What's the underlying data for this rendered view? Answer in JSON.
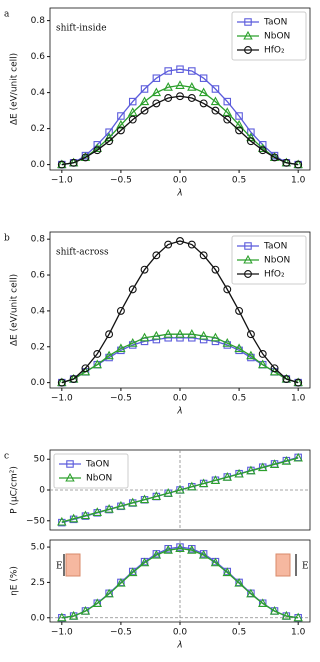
{
  "chart_data": [
    {
      "type": "line",
      "panel": "a",
      "annotation": "shift-inside",
      "ylabel": "ΔE (eV/unit cell)",
      "xlabel": "λ",
      "x": [
        -1,
        -0.9,
        -0.8,
        -0.7,
        -0.6,
        -0.5,
        -0.4,
        -0.3,
        -0.2,
        -0.1,
        0,
        0.1,
        0.2,
        0.3,
        0.4,
        0.5,
        0.6,
        0.7,
        0.8,
        0.9,
        1
      ],
      "xlim": [
        -1.1,
        1.1
      ],
      "xticks": [
        {
          "value": -1,
          "label": "−1.0"
        },
        {
          "value": -0.5,
          "label": "−0.5"
        },
        {
          "value": 0,
          "label": "0.0"
        },
        0.5,
        {
          "value": 1,
          "label": "1.0"
        }
      ],
      "ylim": [
        -0.03,
        0.87
      ],
      "yticks": [
        {
          "value": 0,
          "label": "0.0"
        },
        0.2,
        0.4,
        0.6,
        0.8
      ],
      "legend": "upper right",
      "series": [
        {
          "name": "TaON",
          "color": "#5b5bdc",
          "marker": "square",
          "values": [
            0,
            0.01,
            0.05,
            0.11,
            0.18,
            0.27,
            0.35,
            0.42,
            0.48,
            0.52,
            0.53,
            0.52,
            0.48,
            0.42,
            0.35,
            0.27,
            0.18,
            0.11,
            0.05,
            0.01,
            0
          ]
        },
        {
          "name": "NbON",
          "color": "#2ca02c",
          "marker": "triangle",
          "values": [
            0,
            0.01,
            0.04,
            0.09,
            0.15,
            0.22,
            0.29,
            0.35,
            0.4,
            0.43,
            0.44,
            0.43,
            0.4,
            0.35,
            0.29,
            0.22,
            0.15,
            0.09,
            0.04,
            0.01,
            0
          ]
        },
        {
          "name": "HfO₂",
          "color": "#111111",
          "marker": "circle",
          "values": [
            0,
            0.01,
            0.04,
            0.08,
            0.13,
            0.19,
            0.25,
            0.3,
            0.34,
            0.37,
            0.38,
            0.37,
            0.34,
            0.3,
            0.25,
            0.19,
            0.13,
            0.08,
            0.04,
            0.01,
            0
          ]
        }
      ]
    },
    {
      "type": "line",
      "panel": "b",
      "annotation": "shift-across",
      "ylabel": "ΔE (eV/unit cell)",
      "xlabel": "λ",
      "x": [
        -1,
        -0.9,
        -0.8,
        -0.7,
        -0.6,
        -0.5,
        -0.4,
        -0.3,
        -0.2,
        -0.1,
        0,
        0.1,
        0.2,
        0.3,
        0.4,
        0.5,
        0.6,
        0.7,
        0.8,
        0.9,
        1
      ],
      "xlim": [
        -1.1,
        1.1
      ],
      "xticks": [
        {
          "value": -1,
          "label": "−1.0"
        },
        {
          "value": -0.5,
          "label": "−0.5"
        },
        {
          "value": 0,
          "label": "0.0"
        },
        0.5,
        {
          "value": 1,
          "label": "1.0"
        }
      ],
      "ylim": [
        -0.03,
        0.84
      ],
      "yticks": [
        {
          "value": 0,
          "label": "0.0"
        },
        0.2,
        0.4,
        0.6,
        0.8
      ],
      "legend": "upper right",
      "series": [
        {
          "name": "TaON",
          "color": "#5b5bdc",
          "marker": "square",
          "values": [
            0,
            0.02,
            0.06,
            0.1,
            0.14,
            0.18,
            0.21,
            0.23,
            0.24,
            0.25,
            0.25,
            0.25,
            0.24,
            0.23,
            0.21,
            0.18,
            0.14,
            0.1,
            0.06,
            0.02,
            0
          ]
        },
        {
          "name": "NbON",
          "color": "#2ca02c",
          "marker": "triangle",
          "values": [
            0,
            0.02,
            0.06,
            0.1,
            0.15,
            0.19,
            0.22,
            0.25,
            0.26,
            0.27,
            0.27,
            0.27,
            0.26,
            0.25,
            0.22,
            0.19,
            0.15,
            0.1,
            0.06,
            0.02,
            0
          ]
        },
        {
          "name": "HfO₂",
          "color": "#111111",
          "marker": "circle",
          "values": [
            0,
            0.02,
            0.08,
            0.16,
            0.27,
            0.4,
            0.52,
            0.63,
            0.71,
            0.77,
            0.79,
            0.77,
            0.71,
            0.63,
            0.52,
            0.4,
            0.27,
            0.16,
            0.08,
            0.02,
            0
          ]
        }
      ]
    },
    {
      "type": "line",
      "panel": "c",
      "ylabel": "P (μC/cm²)",
      "zero_lines": true,
      "x": [
        -1,
        -0.9,
        -0.8,
        -0.7,
        -0.6,
        -0.5,
        -0.4,
        -0.3,
        -0.2,
        -0.1,
        0,
        0.1,
        0.2,
        0.3,
        0.4,
        0.5,
        0.6,
        0.7,
        0.8,
        0.9,
        1
      ],
      "xlim": [
        -1.1,
        1.1
      ],
      "ylim": [
        -65,
        65
      ],
      "yticks": [
        {
          "value": -50,
          "label": "−50"
        },
        0,
        50
      ],
      "legend": "upper left",
      "series": [
        {
          "name": "TaON",
          "color": "#5b5bdc",
          "marker": "square",
          "values": [
            -53,
            -47.7,
            -42.4,
            -37.1,
            -31.8,
            -26.5,
            -21.2,
            -15.9,
            -10.6,
            -5.3,
            0,
            5.3,
            10.6,
            15.9,
            21.2,
            26.5,
            31.8,
            37.1,
            42.4,
            47.7,
            53
          ]
        },
        {
          "name": "NbON",
          "color": "#2ca02c",
          "marker": "triangle",
          "values": [
            -52,
            -46.8,
            -41.6,
            -36.4,
            -31.2,
            -26,
            -20.8,
            -15.6,
            -10.4,
            -5.2,
            0,
            5.2,
            10.4,
            15.6,
            20.8,
            26,
            31.2,
            36.4,
            41.6,
            46.8,
            52
          ]
        }
      ]
    },
    {
      "type": "line",
      "ylabel": "ηE (%)",
      "xlabel": "λ",
      "zero_lines": true,
      "annotations": [
        "E",
        "E"
      ],
      "x": [
        -1,
        -0.9,
        -0.8,
        -0.7,
        -0.6,
        -0.5,
        -0.4,
        -0.3,
        -0.2,
        -0.1,
        0,
        0.1,
        0.2,
        0.3,
        0.4,
        0.5,
        0.6,
        0.7,
        0.8,
        0.9,
        1
      ],
      "xlim": [
        -1.1,
        1.1
      ],
      "xticks": [
        {
          "value": -1,
          "label": "−1.0"
        },
        {
          "value": -0.5,
          "label": "−0.5"
        },
        {
          "value": 0,
          "label": "0.0"
        },
        0.5,
        {
          "value": 1,
          "label": "1.0"
        }
      ],
      "ylim": [
        -0.3,
        5.5
      ],
      "yticks": [
        {
          "value": 0,
          "label": "0.0"
        },
        2.5,
        {
          "value": 5,
          "label": "5.0"
        }
      ],
      "series": [
        {
          "name": "TaON",
          "color": "#5b5bdc",
          "marker": "square",
          "values": [
            0,
            0.12,
            0.48,
            1.03,
            1.73,
            2.5,
            3.27,
            3.97,
            4.52,
            4.88,
            5,
            4.88,
            4.52,
            3.97,
            3.27,
            2.5,
            1.73,
            1.03,
            0.48,
            0.12,
            0
          ]
        },
        {
          "name": "NbON",
          "color": "#2ca02c",
          "marker": "triangle",
          "values": [
            0,
            0.12,
            0.47,
            1.01,
            1.69,
            2.45,
            3.2,
            3.89,
            4.43,
            4.78,
            4.9,
            4.78,
            4.43,
            3.89,
            3.2,
            2.45,
            1.69,
            1.01,
            0.47,
            0.12,
            0
          ]
        }
      ]
    }
  ]
}
